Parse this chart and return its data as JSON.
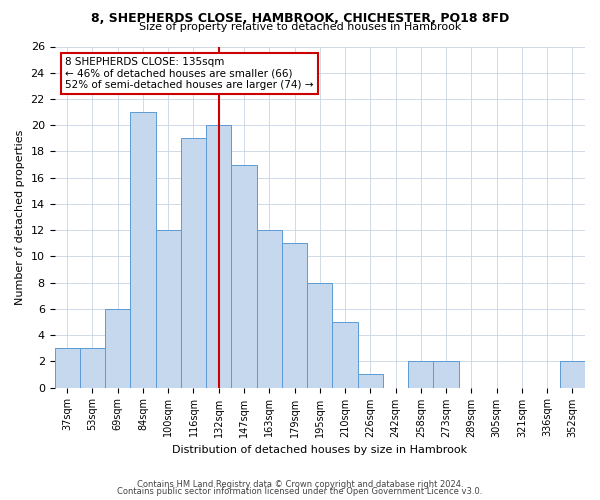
{
  "title1": "8, SHEPHERDS CLOSE, HAMBROOK, CHICHESTER, PO18 8FD",
  "title2": "Size of property relative to detached houses in Hambrook",
  "xlabel": "Distribution of detached houses by size in Hambrook",
  "ylabel": "Number of detached properties",
  "categories": [
    "37sqm",
    "53sqm",
    "69sqm",
    "84sqm",
    "100sqm",
    "116sqm",
    "132sqm",
    "147sqm",
    "163sqm",
    "179sqm",
    "195sqm",
    "210sqm",
    "226sqm",
    "242sqm",
    "258sqm",
    "273sqm",
    "289sqm",
    "305sqm",
    "321sqm",
    "336sqm",
    "352sqm"
  ],
  "bar_values": [
    3,
    3,
    6,
    21,
    12,
    19,
    20,
    17,
    12,
    11,
    8,
    5,
    1,
    0,
    2,
    2,
    0,
    0,
    0,
    0,
    2
  ],
  "bar_color": "#c5d8ed",
  "bar_edgecolor": "#5b9bd5",
  "property_line_x": 6.5,
  "red_line_color": "#cc0000",
  "annotation_line1": "8 SHEPHERDS CLOSE: 135sqm",
  "annotation_line2": "← 46% of detached houses are smaller (66)",
  "annotation_line3": "52% of semi-detached houses are larger (74) →",
  "annotation_box_color": "#ffffff",
  "annotation_box_edgecolor": "#cc0000",
  "ylim": [
    0,
    26
  ],
  "yticks": [
    0,
    2,
    4,
    6,
    8,
    10,
    12,
    14,
    16,
    18,
    20,
    22,
    24,
    26
  ],
  "footer1": "Contains HM Land Registry data © Crown copyright and database right 2024.",
  "footer2": "Contains public sector information licensed under the Open Government Licence v3.0.",
  "background_color": "#ffffff",
  "grid_color": "#c8d4e3"
}
